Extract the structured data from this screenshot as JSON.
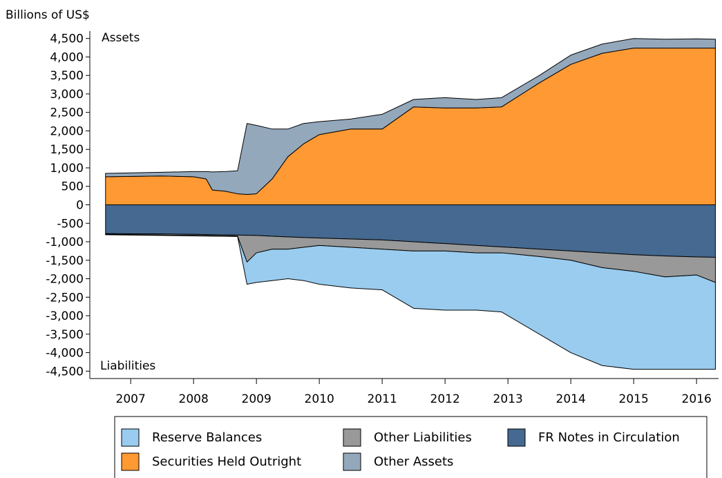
{
  "chart_data": {
    "type": "stacked_area",
    "y_label": "Billions of US$",
    "annotations": [
      "Assets",
      "Liabilities"
    ],
    "x": [
      2006.6,
      2007.5,
      2008.0,
      2008.2,
      2008.3,
      2008.5,
      2008.7,
      2008.85,
      2009.0,
      2009.25,
      2009.5,
      2009.75,
      2010.0,
      2010.5,
      2011.0,
      2011.5,
      2012.0,
      2012.5,
      2012.9,
      2013.5,
      2014.0,
      2014.5,
      2015.0,
      2015.5,
      2016.0,
      2016.3
    ],
    "xlim": [
      2006.35,
      2016.35
    ],
    "xticks": [
      2007,
      2008,
      2009,
      2010,
      2011,
      2012,
      2013,
      2014,
      2015,
      2016
    ],
    "ylim": [
      -4700,
      4700
    ],
    "yticks": [
      {
        "value": 4500,
        "label": "4,500"
      },
      {
        "value": 4000,
        "label": "4,000"
      },
      {
        "value": 3500,
        "label": "3,500"
      },
      {
        "value": 3000,
        "label": "3,000"
      },
      {
        "value": 2500,
        "label": "2,500"
      },
      {
        "value": 2000,
        "label": "2,000"
      },
      {
        "value": 1500,
        "label": "1,500"
      },
      {
        "value": 1000,
        "label": "1,000"
      },
      500,
      0,
      -500,
      {
        "value": -1000,
        "label": "-1,000"
      },
      {
        "value": -1500,
        "label": "-1,500"
      },
      {
        "value": -2000,
        "label": "-2,000"
      },
      {
        "value": -2500,
        "label": "-2,500"
      },
      {
        "value": -3000,
        "label": "-3,000"
      },
      {
        "value": -3500,
        "label": "-3,500"
      },
      {
        "value": -4000,
        "label": "-4,000"
      },
      {
        "value": -4500,
        "label": "-4,500"
      }
    ],
    "series": [
      {
        "name": "Securities Held Outright",
        "color": "#ff9933",
        "values": [
          760,
          780,
          760,
          700,
          400,
          370,
          300,
          280,
          300,
          700,
          1300,
          1650,
          1900,
          2050,
          2050,
          2650,
          2620,
          2620,
          2650,
          3300,
          3800,
          4100,
          4240,
          4240,
          4240,
          4240
        ]
      },
      {
        "name": "Other Assets",
        "color": "#94a8bc",
        "values": [
          90,
          100,
          140,
          200,
          490,
          530,
          620,
          1920,
          1850,
          1350,
          750,
          550,
          350,
          270,
          400,
          200,
          280,
          230,
          250,
          200,
          250,
          250,
          260,
          240,
          250,
          240
        ]
      },
      {
        "name": "FR Notes in Circulation",
        "color": "#456990",
        "values": [
          -780,
          -790,
          -800,
          -805,
          -810,
          -815,
          -820,
          -825,
          -830,
          -850,
          -870,
          -885,
          -900,
          -925,
          -950,
          -1000,
          -1050,
          -1100,
          -1140,
          -1200,
          -1250,
          -1300,
          -1350,
          -1385,
          -1410,
          -1420
        ]
      },
      {
        "name": "Other Liabilities",
        "color": "#999999",
        "values": [
          -20,
          -30,
          -30,
          -30,
          -28,
          -25,
          -30,
          -725,
          -470,
          -350,
          -330,
          -265,
          -200,
          -225,
          -250,
          -250,
          -200,
          -200,
          -160,
          -200,
          -250,
          -400,
          -450,
          -565,
          -490,
          -680
        ]
      },
      {
        "name": "Reserve Balances",
        "color": "#99ccee",
        "values": [
          -10,
          -10,
          -10,
          -10,
          -10,
          -10,
          -10,
          -600,
          -800,
          -850,
          -800,
          -900,
          -1050,
          -1100,
          -1100,
          -1550,
          -1600,
          -1550,
          -1600,
          -2100,
          -2500,
          -2650,
          -2650,
          -2500,
          -2550,
          -2350
        ]
      }
    ]
  }
}
